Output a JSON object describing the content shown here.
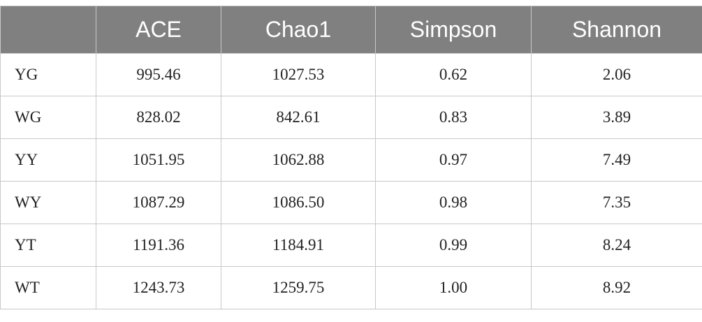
{
  "table": {
    "columns": [
      "ACE",
      "Chao1",
      "Simpson",
      "Shannon"
    ],
    "rows": [
      {
        "label": "YG",
        "cells": [
          "995.46",
          "1027.53",
          "0.62",
          "2.06"
        ]
      },
      {
        "label": "WG",
        "cells": [
          "828.02",
          "842.61",
          "0.83",
          "3.89"
        ]
      },
      {
        "label": "YY",
        "cells": [
          "1051.95",
          "1062.88",
          "0.97",
          "7.49"
        ]
      },
      {
        "label": "WY",
        "cells": [
          "1087.29",
          "1086.50",
          "0.98",
          "7.35"
        ]
      },
      {
        "label": "YT",
        "cells": [
          "1191.36",
          "1184.91",
          "0.99",
          "8.24"
        ]
      },
      {
        "label": "WT",
        "cells": [
          "1243.73",
          "1259.75",
          "1.00",
          "8.92"
        ]
      }
    ]
  }
}
